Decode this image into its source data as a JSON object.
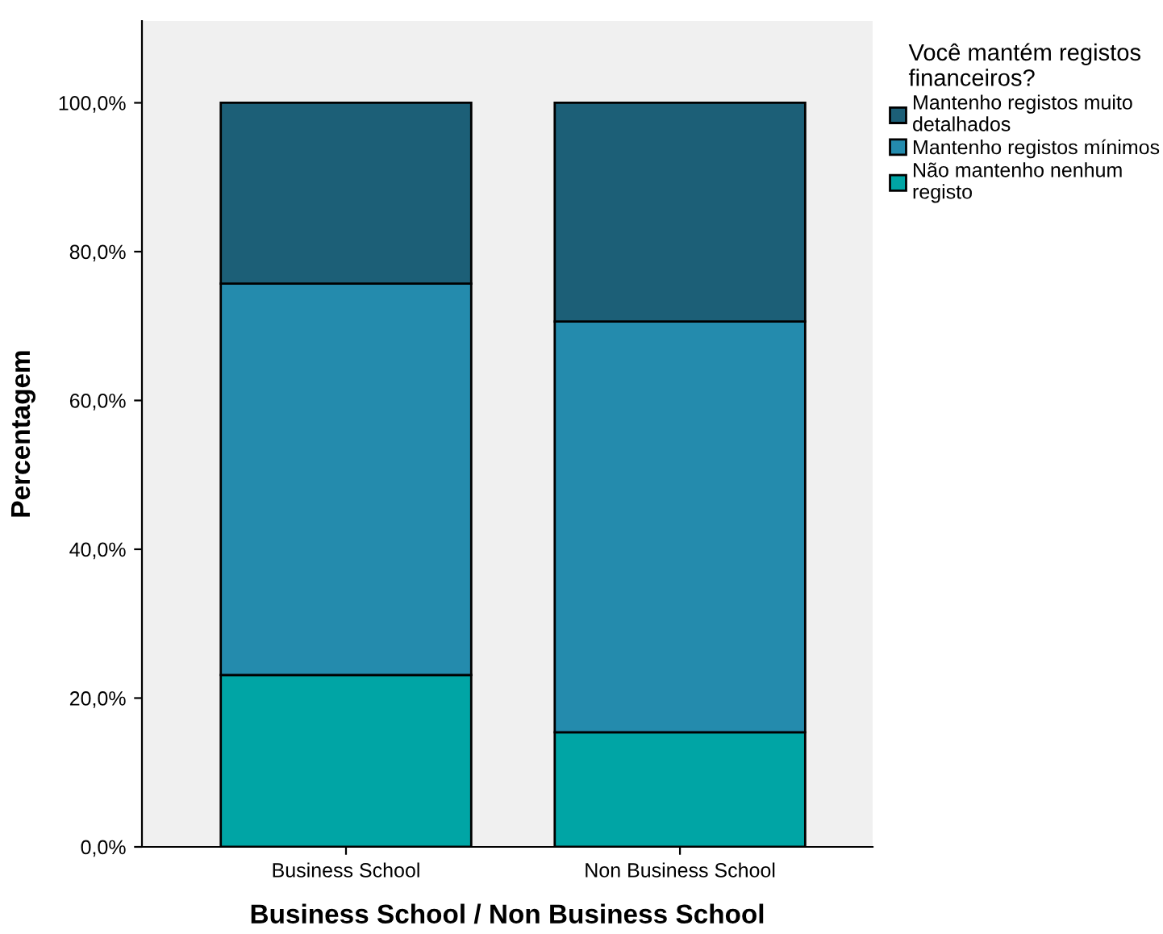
{
  "chart_data": {
    "type": "bar",
    "stacked": true,
    "xlabel": "Business School / Non Business School",
    "ylabel": "Percentagem",
    "legend_title": "Você mantém registos\nfinanceiros?",
    "categories": [
      "Business School",
      "Non Business School"
    ],
    "series": [
      {
        "name": "Não mantenho nenhum\nregisto",
        "color": "#00a5a5",
        "values": [
          23.1,
          15.4
        ]
      },
      {
        "name": "Mantenho registos mínimos",
        "color": "#248bad",
        "values": [
          52.6,
          55.2
        ]
      },
      {
        "name": "Mantenho registos muito\ndetalhados",
        "color": "#1c5f77",
        "values": [
          24.3,
          29.4
        ]
      }
    ],
    "ylim": [
      0,
      111
    ],
    "yticks": [
      {
        "value": 0,
        "label": "0,0%"
      },
      {
        "value": 20,
        "label": "20,0%"
      },
      {
        "value": 40,
        "label": "40,0%"
      },
      {
        "value": 60,
        "label": "60,0%"
      },
      {
        "value": 80,
        "label": "80,0%"
      },
      {
        "value": 100,
        "label": "100,0%"
      }
    ],
    "grid": false,
    "legend": "top right"
  }
}
